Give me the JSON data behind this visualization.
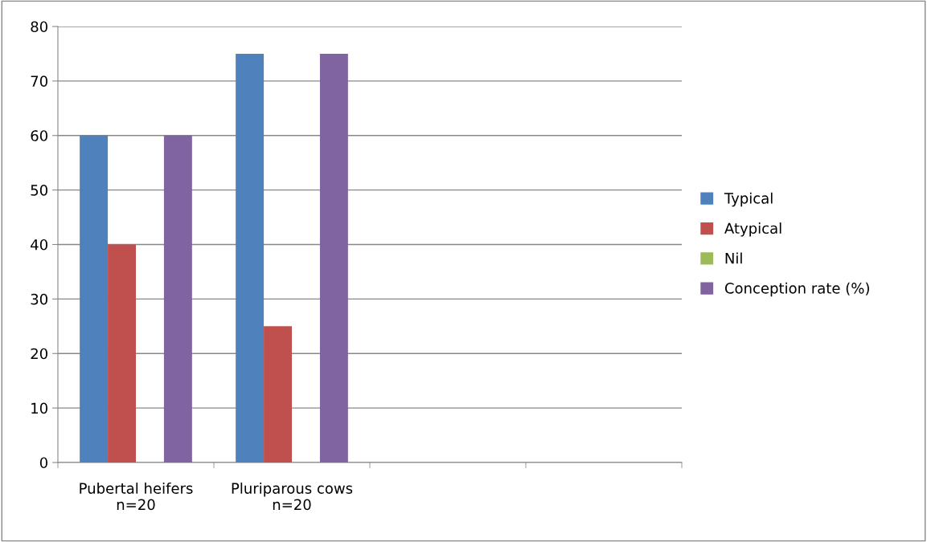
{
  "chart_data": {
    "type": "bar",
    "categories": [
      "Pubertal heifers\nn=20",
      "Pluriparous cows\nn=20",
      null,
      null
    ],
    "series": [
      {
        "name": "Typical",
        "color": "#4f81bd",
        "values": [
          60,
          75,
          null,
          null
        ]
      },
      {
        "name": "Atypical",
        "color": "#c0504d",
        "values": [
          40,
          25,
          null,
          null
        ]
      },
      {
        "name": "Nil",
        "color": "#9bbb59",
        "values": [
          0,
          0,
          null,
          null
        ]
      },
      {
        "name": "Conception rate (%)",
        "color": "#8064a2",
        "values": [
          60,
          75,
          null,
          null
        ]
      }
    ],
    "ylim": [
      0,
      80
    ],
    "yticks": [
      0,
      10,
      20,
      30,
      40,
      50,
      60,
      70,
      80
    ],
    "grid": "y",
    "legend": "right"
  }
}
